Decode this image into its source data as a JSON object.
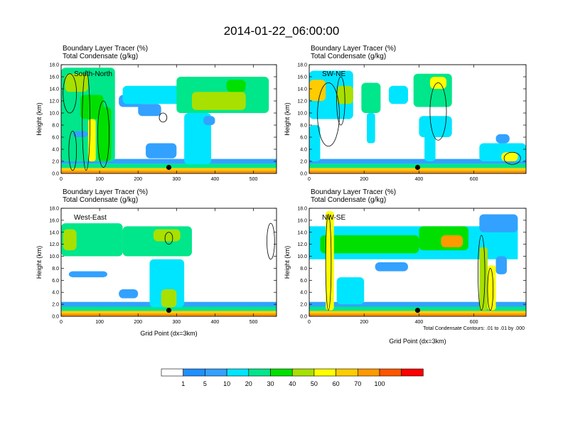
{
  "figure": {
    "title": "2014-01-22_06:00:00",
    "note": "Total Condensate Contours: .01 to .01 by .000"
  },
  "chart_data": [
    {
      "type": "heatmap",
      "panel": "South-North",
      "title_line1": "Boundary Layer Tracer   (%)",
      "title_line2": "Total Condensate   (g/kg)",
      "ylabel": "Height (km)",
      "xlabel": "",
      "xlim": [
        0,
        560
      ],
      "ylim": [
        0,
        18
      ],
      "xticks": [
        0,
        100,
        200,
        300,
        400,
        500
      ],
      "yticks": [
        "0.0",
        "2.0",
        "4.0",
        "6.0",
        "8.0",
        "10.0",
        "12.0",
        "14.0",
        "16.0",
        "18.0"
      ],
      "marker": {
        "x": 280,
        "y": 1.0
      },
      "features": [
        {
          "x0": 0,
          "x1": 560,
          "y0": 0.0,
          "y1": 0.5,
          "value": 85
        },
        {
          "x0": 0,
          "x1": 560,
          "y0": 0.5,
          "y1": 0.9,
          "value": 60
        },
        {
          "x0": 0,
          "x1": 560,
          "y0": 0.9,
          "y1": 1.6,
          "value": 20
        },
        {
          "x0": 0,
          "x1": 560,
          "y0": 1.6,
          "y1": 2.4,
          "value": 5
        },
        {
          "x0": 0,
          "x1": 140,
          "y0": 2.0,
          "y1": 17.5,
          "value": 20
        },
        {
          "x0": 10,
          "x1": 70,
          "y0": 13.5,
          "y1": 16.5,
          "value": 45
        },
        {
          "x0": 50,
          "x1": 110,
          "y0": 9.0,
          "y1": 13.0,
          "value": 35
        },
        {
          "x0": 70,
          "x1": 90,
          "y0": 2.0,
          "y1": 9.0,
          "value": 55
        },
        {
          "x0": 95,
          "x1": 130,
          "y0": 2.0,
          "y1": 11.0,
          "value": 30
        },
        {
          "x0": 150,
          "x1": 210,
          "y0": 11.0,
          "y1": 13.0,
          "value": 5
        },
        {
          "x0": 160,
          "x1": 310,
          "y0": 11.5,
          "y1": 14.5,
          "value": 10
        },
        {
          "x0": 200,
          "x1": 260,
          "y0": 9.5,
          "y1": 11.5,
          "value": 5
        },
        {
          "x0": 220,
          "x1": 300,
          "y0": 2.5,
          "y1": 5.0,
          "value": 5
        },
        {
          "x0": 300,
          "x1": 540,
          "y0": 10.0,
          "y1": 16.0,
          "value": 20
        },
        {
          "x0": 340,
          "x1": 480,
          "y0": 10.5,
          "y1": 13.5,
          "value": 45
        },
        {
          "x0": 430,
          "x1": 480,
          "y0": 13.5,
          "y1": 15.5,
          "value": 30
        },
        {
          "x0": 320,
          "x1": 390,
          "y0": 1.5,
          "y1": 10.0,
          "value": 15
        },
        {
          "x0": 370,
          "x1": 400,
          "y0": 8.0,
          "y1": 9.5,
          "value": 5
        },
        {
          "x0": 30,
          "x1": 70,
          "y0": 6.0,
          "y1": 7.0,
          "value": 5
        }
      ],
      "contours": [
        {
          "x0": 5,
          "x1": 40,
          "y0": 10.0,
          "y1": 16.5
        },
        {
          "x0": 20,
          "x1": 40,
          "y0": 0.5,
          "y1": 7.0
        },
        {
          "x0": 55,
          "x1": 75,
          "y0": 0.5,
          "y1": 17.0
        },
        {
          "x0": 95,
          "x1": 125,
          "y0": 1.0,
          "y1": 12.0
        },
        {
          "x0": 255,
          "x1": 275,
          "y0": 8.5,
          "y1": 10.0
        }
      ]
    },
    {
      "type": "heatmap",
      "panel": "SW-NE",
      "title_line1": "Boundary Layer Tracer   (%)",
      "title_line2": "Total Condensate   (g/kg)",
      "ylabel": "Height (km)",
      "xlabel": "",
      "xlim": [
        0,
        790
      ],
      "ylim": [
        0,
        18
      ],
      "xticks": [
        0,
        200,
        400,
        600
      ],
      "yticks": [
        "0.0",
        "2.0",
        "4.0",
        "6.0",
        "8.0",
        "10.0",
        "12.0",
        "14.0",
        "16.0",
        "18.0"
      ],
      "marker": {
        "x": 395,
        "y": 1.0
      },
      "features": [
        {
          "x0": 0,
          "x1": 790,
          "y0": 0.0,
          "y1": 0.5,
          "value": 85
        },
        {
          "x0": 0,
          "x1": 790,
          "y0": 0.5,
          "y1": 0.9,
          "value": 60
        },
        {
          "x0": 0,
          "x1": 790,
          "y0": 0.9,
          "y1": 1.6,
          "value": 20
        },
        {
          "x0": 0,
          "x1": 790,
          "y0": 1.6,
          "y1": 2.4,
          "value": 5
        },
        {
          "x0": 0,
          "x1": 160,
          "y0": 9.0,
          "y1": 17.0,
          "value": 15
        },
        {
          "x0": 0,
          "x1": 60,
          "y0": 12.0,
          "y1": 15.5,
          "value": 60
        },
        {
          "x0": 100,
          "x1": 160,
          "y0": 11.5,
          "y1": 14.5,
          "value": 45
        },
        {
          "x0": 0,
          "x1": 40,
          "y0": 2.0,
          "y1": 8.0,
          "value": 15
        },
        {
          "x0": 190,
          "x1": 260,
          "y0": 10.0,
          "y1": 15.0,
          "value": 20
        },
        {
          "x0": 210,
          "x1": 240,
          "y0": 5.0,
          "y1": 10.0,
          "value": 10
        },
        {
          "x0": 290,
          "x1": 360,
          "y0": 11.5,
          "y1": 14.5,
          "value": 10
        },
        {
          "x0": 380,
          "x1": 520,
          "y0": 11.0,
          "y1": 16.5,
          "value": 25
        },
        {
          "x0": 440,
          "x1": 500,
          "y0": 14.0,
          "y1": 16.0,
          "value": 55
        },
        {
          "x0": 400,
          "x1": 520,
          "y0": 6.0,
          "y1": 9.5,
          "value": 10
        },
        {
          "x0": 420,
          "x1": 460,
          "y0": 2.0,
          "y1": 6.5,
          "value": 10
        },
        {
          "x0": 620,
          "x1": 790,
          "y0": 2.0,
          "y1": 5.0,
          "value": 15
        },
        {
          "x0": 700,
          "x1": 760,
          "y0": 2.0,
          "y1": 3.5,
          "value": 50
        },
        {
          "x0": 680,
          "x1": 730,
          "y0": 5.0,
          "y1": 6.5,
          "value": 5
        }
      ],
      "contours": [
        {
          "x0": 30,
          "x1": 110,
          "y0": 4.5,
          "y1": 15.0
        },
        {
          "x0": 100,
          "x1": 130,
          "y0": 8.0,
          "y1": 16.0
        },
        {
          "x0": 440,
          "x1": 500,
          "y0": 5.5,
          "y1": 15.0
        },
        {
          "x0": 710,
          "x1": 770,
          "y0": 1.5,
          "y1": 3.5
        }
      ]
    },
    {
      "type": "heatmap",
      "panel": "West-East",
      "title_line1": "Boundary Layer Tracer   (%)",
      "title_line2": "Total Condensate   (g/kg)",
      "ylabel": "Height (km)",
      "xlabel": "Grid Point (dx=3km)",
      "xlim": [
        0,
        560
      ],
      "ylim": [
        0,
        18
      ],
      "xticks": [
        0,
        100,
        200,
        300,
        400,
        500
      ],
      "yticks": [
        "0.0",
        "2.0",
        "4.0",
        "6.0",
        "8.0",
        "10.0",
        "12.0",
        "14.0",
        "16.0",
        "18.0"
      ],
      "marker": {
        "x": 280,
        "y": 1.0
      },
      "features": [
        {
          "x0": 0,
          "x1": 560,
          "y0": 0.0,
          "y1": 0.5,
          "value": 85
        },
        {
          "x0": 0,
          "x1": 560,
          "y0": 0.5,
          "y1": 0.9,
          "value": 60
        },
        {
          "x0": 0,
          "x1": 560,
          "y0": 0.9,
          "y1": 1.6,
          "value": 20
        },
        {
          "x0": 0,
          "x1": 560,
          "y0": 1.6,
          "y1": 2.4,
          "value": 5
        },
        {
          "x0": 0,
          "x1": 160,
          "y0": 10.0,
          "y1": 15.5,
          "value": 20
        },
        {
          "x0": 5,
          "x1": 40,
          "y0": 11.0,
          "y1": 14.5,
          "value": 45
        },
        {
          "x0": 20,
          "x1": 120,
          "y0": 6.5,
          "y1": 7.5,
          "value": 5
        },
        {
          "x0": 150,
          "x1": 200,
          "y0": 3.0,
          "y1": 4.5,
          "value": 5
        },
        {
          "x0": 160,
          "x1": 340,
          "y0": 10.0,
          "y1": 15.0,
          "value": 20
        },
        {
          "x0": 240,
          "x1": 310,
          "y0": 12.5,
          "y1": 14.5,
          "value": 40
        },
        {
          "x0": 230,
          "x1": 320,
          "y0": 1.5,
          "y1": 9.5,
          "value": 10
        },
        {
          "x0": 260,
          "x1": 300,
          "y0": 1.5,
          "y1": 4.5,
          "value": 40
        }
      ],
      "contours": [
        {
          "x0": 270,
          "x1": 290,
          "y0": 12.0,
          "y1": 14.0
        },
        {
          "x0": 535,
          "x1": 555,
          "y0": 9.5,
          "y1": 15.5
        }
      ]
    },
    {
      "type": "heatmap",
      "panel": "NW-SE",
      "title_line1": "Boundary Layer Tracer   (%)",
      "title_line2": "Total Condensate   (g/kg)",
      "ylabel": "Height (km)",
      "xlabel": "Grid Point (dx=3km)",
      "xlim": [
        0,
        790
      ],
      "ylim": [
        0,
        18
      ],
      "xticks": [
        0,
        200,
        400,
        600
      ],
      "yticks": [
        "0.0",
        "2.0",
        "4.0",
        "6.0",
        "8.0",
        "10.0",
        "12.0",
        "14.0",
        "16.0",
        "18.0"
      ],
      "marker": {
        "x": 395,
        "y": 1.0
      },
      "features": [
        {
          "x0": 0,
          "x1": 790,
          "y0": 0.0,
          "y1": 0.5,
          "value": 85
        },
        {
          "x0": 0,
          "x1": 790,
          "y0": 0.5,
          "y1": 0.9,
          "value": 60
        },
        {
          "x0": 0,
          "x1": 790,
          "y0": 0.9,
          "y1": 1.6,
          "value": 20
        },
        {
          "x0": 0,
          "x1": 790,
          "y0": 1.6,
          "y1": 2.4,
          "value": 5
        },
        {
          "x0": 0,
          "x1": 760,
          "y0": 9.5,
          "y1": 15.0,
          "value": 15
        },
        {
          "x0": 40,
          "x1": 400,
          "y0": 10.5,
          "y1": 13.5,
          "value": 30
        },
        {
          "x0": 400,
          "x1": 580,
          "y0": 11.0,
          "y1": 15.0,
          "value": 30
        },
        {
          "x0": 480,
          "x1": 560,
          "y0": 11.5,
          "y1": 13.5,
          "value": 70
        },
        {
          "x0": 620,
          "x1": 760,
          "y0": 14.0,
          "y1": 17.0,
          "value": 5
        },
        {
          "x0": 680,
          "x1": 720,
          "y0": 7.0,
          "y1": 10.0,
          "value": 5
        },
        {
          "x0": 60,
          "x1": 90,
          "y0": 1.0,
          "y1": 17.5,
          "value": 55
        },
        {
          "x0": 100,
          "x1": 200,
          "y0": 2.0,
          "y1": 6.5,
          "value": 10
        },
        {
          "x0": 620,
          "x1": 650,
          "y0": 1.0,
          "y1": 11.5,
          "value": 40
        },
        {
          "x0": 650,
          "x1": 680,
          "y0": 1.0,
          "y1": 8.5,
          "value": 50
        },
        {
          "x0": 240,
          "x1": 360,
          "y0": 7.5,
          "y1": 9.0,
          "value": 5
        }
      ],
      "contours": [
        {
          "x0": 60,
          "x1": 80,
          "y0": 1.0,
          "y1": 17.0
        },
        {
          "x0": 615,
          "x1": 640,
          "y0": 1.0,
          "y1": 13.5
        },
        {
          "x0": 650,
          "x1": 670,
          "y0": 1.0,
          "y1": 8.0
        }
      ]
    }
  ],
  "colorbar": {
    "levels": [
      "1",
      "5",
      "10",
      "20",
      "30",
      "40",
      "50",
      "60",
      "70",
      "100"
    ],
    "colors": [
      "#ffffff",
      "#1e90ff",
      "#33a1ff",
      "#00e5ff",
      "#00e68a",
      "#00e000",
      "#a8e000",
      "#ffff00",
      "#ffcc00",
      "#ff9900",
      "#ff5500",
      "#ff0000"
    ]
  }
}
